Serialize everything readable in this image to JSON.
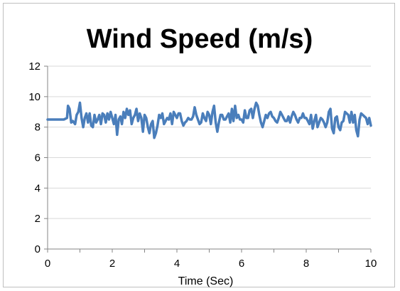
{
  "chart_data": {
    "type": "line",
    "title": "Wind Speed (m/s)",
    "xlabel": "Time (Sec)",
    "ylabel": "",
    "xlim": [
      0,
      10
    ],
    "ylim": [
      0,
      12
    ],
    "x_ticks": [
      0,
      2,
      4,
      6,
      8,
      10
    ],
    "y_ticks": [
      0,
      2,
      4,
      6,
      8,
      10,
      12
    ],
    "grid": "horizontal",
    "legend": "none",
    "line_color": "#4a7ebb",
    "series": [
      {
        "x": [
          0,
          0.1,
          0.2,
          0.3,
          0.4,
          0.5,
          0.6,
          0.63,
          0.68,
          0.73,
          0.78,
          0.85,
          0.9,
          0.95,
          1.0,
          1.05,
          1.1,
          1.15,
          1.2,
          1.25,
          1.3,
          1.35,
          1.4,
          1.45,
          1.5,
          1.55,
          1.6,
          1.65,
          1.7,
          1.75,
          1.8,
          1.85,
          1.9,
          1.95,
          2.0,
          2.05,
          2.1,
          2.15,
          2.2,
          2.25,
          2.3,
          2.35,
          2.4,
          2.45,
          2.5,
          2.55,
          2.6,
          2.65,
          2.7,
          2.75,
          2.8,
          2.85,
          2.9,
          2.95,
          3.0,
          3.05,
          3.1,
          3.15,
          3.2,
          3.25,
          3.3,
          3.35,
          3.4,
          3.45,
          3.5,
          3.55,
          3.6,
          3.65,
          3.7,
          3.75,
          3.8,
          3.85,
          3.9,
          3.95,
          4.0,
          4.05,
          4.1,
          4.15,
          4.2,
          4.25,
          4.3,
          4.35,
          4.4,
          4.45,
          4.5,
          4.55,
          4.6,
          4.65,
          4.7,
          4.75,
          4.8,
          4.85,
          4.9,
          4.95,
          5.0,
          5.05,
          5.1,
          5.15,
          5.2,
          5.25,
          5.3,
          5.35,
          5.4,
          5.45,
          5.5,
          5.55,
          5.6,
          5.65,
          5.7,
          5.75,
          5.8,
          5.85,
          5.9,
          5.95,
          6.0,
          6.05,
          6.1,
          6.15,
          6.2,
          6.25,
          6.3,
          6.35,
          6.4,
          6.45,
          6.5,
          6.55,
          6.6,
          6.65,
          6.7,
          6.75,
          6.8,
          6.85,
          6.9,
          6.95,
          7.0,
          7.05,
          7.1,
          7.15,
          7.2,
          7.25,
          7.3,
          7.35,
          7.4,
          7.45,
          7.5,
          7.55,
          7.6,
          7.65,
          7.7,
          7.75,
          7.8,
          7.85,
          7.9,
          7.95,
          8.0,
          8.05,
          8.1,
          8.15,
          8.2,
          8.25,
          8.3,
          8.35,
          8.4,
          8.45,
          8.5,
          8.55,
          8.6,
          8.65,
          8.7,
          8.75,
          8.8,
          8.85,
          8.9,
          8.95,
          9.0,
          9.05,
          9.1,
          9.15,
          9.2,
          9.25,
          9.3,
          9.35,
          9.4,
          9.45,
          9.5,
          9.55,
          9.6,
          9.65,
          9.7,
          9.75,
          9.8,
          9.85,
          9.9,
          9.95,
          10.0
        ],
        "y": [
          8.5,
          8.5,
          8.5,
          8.5,
          8.5,
          8.5,
          8.6,
          9.4,
          9.2,
          8.3,
          8.4,
          8.2,
          8.8,
          9.0,
          9.6,
          8.6,
          8.0,
          8.6,
          8.9,
          8.3,
          8.9,
          8.1,
          8.0,
          8.8,
          8.3,
          8.5,
          8.8,
          8.2,
          8.9,
          8.8,
          8.3,
          8.9,
          8.5,
          9.0,
          8.6,
          8.2,
          8.8,
          7.5,
          8.5,
          8.7,
          8.2,
          9.0,
          8.6,
          9.2,
          8.8,
          9.1,
          8.2,
          8.6,
          8.8,
          9.2,
          8.4,
          8.9,
          8.6,
          7.7,
          8.8,
          8.6,
          8.0,
          7.6,
          8.2,
          8.4,
          7.3,
          7.6,
          8.1,
          8.8,
          8.6,
          8.9,
          8.2,
          8.4,
          8.6,
          8.5,
          8.9,
          8.2,
          9.0,
          8.8,
          8.6,
          8.9,
          8.9,
          8.4,
          8.1,
          8.3,
          8.4,
          8.6,
          8.5,
          8.5,
          8.7,
          9.3,
          8.8,
          8.5,
          8.2,
          8.3,
          8.9,
          8.6,
          8.4,
          9.0,
          8.8,
          8.2,
          9.0,
          9.4,
          8.3,
          7.7,
          8.3,
          8.8,
          8.8,
          8.5,
          8.5,
          8.7,
          8.9,
          8.3,
          9.2,
          8.4,
          9.4,
          8.6,
          8.8,
          8.5,
          8.5,
          8.3,
          9.1,
          8.6,
          8.6,
          9.1,
          9.2,
          8.6,
          9.2,
          9.6,
          9.4,
          8.8,
          8.3,
          8.0,
          8.4,
          8.8,
          8.6,
          8.9,
          9.0,
          8.7,
          8.6,
          8.4,
          8.3,
          8.6,
          9.0,
          8.8,
          8.6,
          8.4,
          8.4,
          8.7,
          8.3,
          8.7,
          9.0,
          8.8,
          8.5,
          8.3,
          8.6,
          8.6,
          8.9,
          8.6,
          8.6,
          8.4,
          8.2,
          8.8,
          7.9,
          8.4,
          8.8,
          8.0,
          8.3,
          8.6,
          8.5,
          8.3,
          8.0,
          8.3,
          9.0,
          9.2,
          7.9,
          7.6,
          8.6,
          8.7,
          8.0,
          7.8,
          8.3,
          8.4,
          9.0,
          8.9,
          8.8,
          8.3,
          9.0,
          8.3,
          8.8,
          7.8,
          7.4,
          8.5,
          8.9,
          8.8,
          8.7,
          8.6,
          8.2,
          8.6,
          8.1
        ]
      }
    ]
  }
}
